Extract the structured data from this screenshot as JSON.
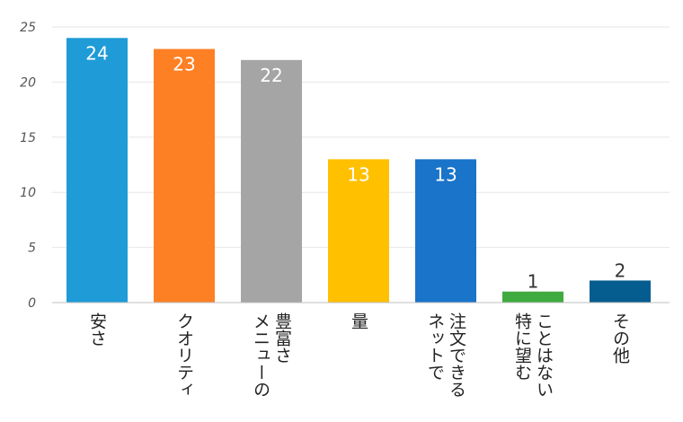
{
  "chart_data": {
    "type": "bar",
    "categories": [
      "安さ",
      "クオリティ",
      "豊富さ\nメニューの",
      "量",
      "注文できる\nネットで",
      "ことはない\n特に望む",
      "その他"
    ],
    "values": [
      24,
      23,
      22,
      13,
      13,
      1,
      2
    ],
    "colors": [
      "#1f9bd7",
      "#fd8025",
      "#a5a5a5",
      "#ffc000",
      "#1a74c9",
      "#3faa3f",
      "#045c8f"
    ],
    "ylim": [
      0,
      25
    ],
    "yticks": [
      0,
      5,
      10,
      15,
      20,
      25
    ],
    "grid": true,
    "legend": "none",
    "value_label_position": "inside-top (outside when bar is short)"
  }
}
